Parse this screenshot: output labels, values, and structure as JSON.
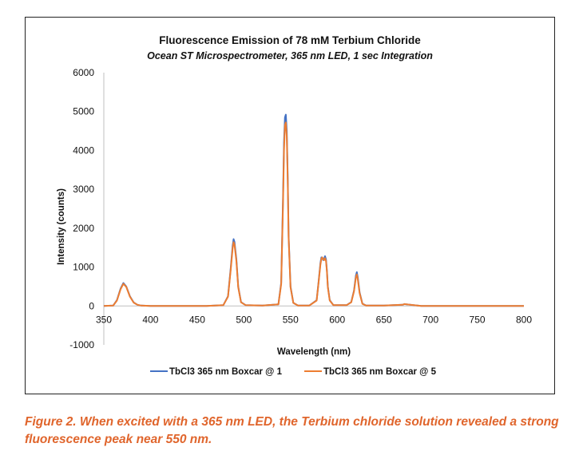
{
  "chart_data": {
    "type": "line",
    "title": "Fluorescence Emission of 78 mM Terbium Chloride",
    "subtitle": "Ocean ST Microspectrometer, 365 nm LED, 1 sec Integration",
    "xlabel": "Wavelength (nm)",
    "ylabel": "Intensity (counts)",
    "xlim": [
      350,
      800
    ],
    "ylim": [
      -1000,
      6000
    ],
    "x_ticks": [
      350,
      400,
      450,
      500,
      550,
      600,
      650,
      700,
      750,
      800
    ],
    "y_ticks": [
      -1000,
      0,
      1000,
      2000,
      3000,
      4000,
      5000,
      6000
    ],
    "grid": false,
    "legend_position": "bottom",
    "series": [
      {
        "name": "TbCl3 365 nm Boxcar @ 1",
        "color": "#4472c4",
        "x": [
          350,
          360,
          364,
          368,
          371,
          374,
          378,
          382,
          386,
          390,
          400,
          420,
          440,
          460,
          478,
          483,
          486,
          488,
          489,
          490,
          492,
          494,
          497,
          502,
          520,
          537,
          540,
          542,
          543,
          544,
          545,
          546,
          547,
          548,
          550,
          553,
          558,
          570,
          578,
          580,
          582,
          583,
          584,
          585,
          586,
          587,
          588,
          589,
          590,
          592,
          596,
          610,
          615,
          618,
          620,
          621,
          622,
          624,
          627,
          631,
          650,
          670,
          672,
          690,
          720,
          750,
          780,
          800
        ],
        "y": [
          0,
          10,
          150,
          450,
          590,
          500,
          250,
          90,
          30,
          10,
          0,
          0,
          0,
          0,
          20,
          250,
          1000,
          1550,
          1720,
          1650,
          1200,
          500,
          100,
          20,
          10,
          40,
          600,
          2800,
          4200,
          4850,
          4920,
          4500,
          3300,
          1800,
          500,
          80,
          10,
          10,
          150,
          600,
          1100,
          1250,
          1240,
          1180,
          1220,
          1280,
          1200,
          900,
          500,
          150,
          20,
          20,
          100,
          400,
          780,
          870,
          750,
          350,
          60,
          10,
          10,
          30,
          50,
          0,
          0,
          0,
          0,
          0
        ]
      },
      {
        "name": "TbCl3 365 nm Boxcar @ 5",
        "color": "#ed7d31",
        "x": [
          350,
          360,
          364,
          368,
          371,
          374,
          378,
          382,
          386,
          390,
          400,
          420,
          440,
          460,
          478,
          483,
          486,
          488,
          489,
          490,
          492,
          494,
          497,
          502,
          520,
          537,
          540,
          542,
          543,
          544,
          545,
          546,
          547,
          548,
          550,
          553,
          558,
          570,
          578,
          580,
          582,
          583,
          584,
          585,
          586,
          587,
          588,
          589,
          590,
          592,
          596,
          610,
          615,
          618,
          620,
          621,
          622,
          624,
          627,
          631,
          650,
          670,
          672,
          690,
          720,
          750,
          780,
          800
        ],
        "y": [
          0,
          10,
          140,
          430,
          570,
          490,
          240,
          85,
          30,
          10,
          0,
          0,
          0,
          0,
          20,
          240,
          950,
          1480,
          1640,
          1580,
          1150,
          480,
          95,
          20,
          10,
          40,
          560,
          2650,
          4000,
          4650,
          4720,
          4350,
          3200,
          1750,
          480,
          80,
          10,
          10,
          140,
          580,
          1060,
          1210,
          1250,
          1200,
          1180,
          1230,
          1160,
          870,
          480,
          140,
          20,
          20,
          95,
          380,
          730,
          810,
          700,
          330,
          55,
          10,
          10,
          30,
          50,
          0,
          0,
          0,
          0,
          0
        ]
      }
    ]
  },
  "caption": "Figure 2. When excited with a 365 nm LED, the Terbium chloride solution revealed a strong fluorescence peak near 550 nm."
}
